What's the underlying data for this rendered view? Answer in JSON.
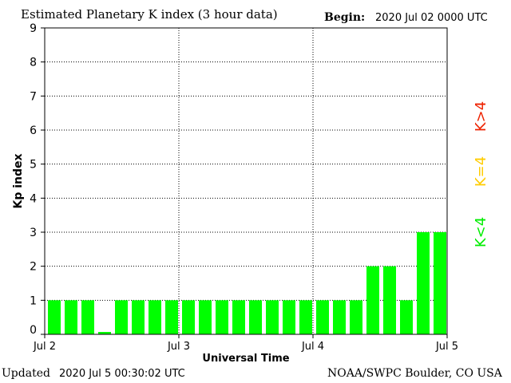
{
  "header": {
    "title": "Estimated Planetary K index (3 hour data)",
    "begin_label": "Begin:",
    "begin_value": "2020 Jul 02 0000 UTC"
  },
  "footer": {
    "updated_label": "Updated",
    "updated_value": "2020 Jul  5 00:30:02 UTC",
    "credit": "NOAA/SWPC Boulder, CO USA"
  },
  "legend": [
    {
      "text": "K<4",
      "color": "#00ee00"
    },
    {
      "text": "K=4",
      "color": "#ffcc00"
    },
    {
      "text": "K>4",
      "color": "#ee2200"
    }
  ],
  "chart_data": {
    "type": "bar",
    "title": "Estimated Planetary K index (3 hour data)",
    "xlabel": "Universal Time",
    "ylabel": "Kp index",
    "ylim": [
      0,
      9
    ],
    "yticks": [
      0,
      1,
      2,
      3,
      4,
      5,
      6,
      7,
      8,
      9
    ],
    "grid": true,
    "day_labels": [
      "Jul 2",
      "Jul 3",
      "Jul 4",
      "Jul 5"
    ],
    "bar_color": "#00ff00",
    "values": [
      1,
      1,
      1,
      0.07,
      1,
      1,
      1,
      1,
      1,
      1,
      1,
      1,
      1,
      1,
      1,
      1,
      1,
      1,
      1,
      2,
      2,
      1,
      3,
      3
    ]
  }
}
